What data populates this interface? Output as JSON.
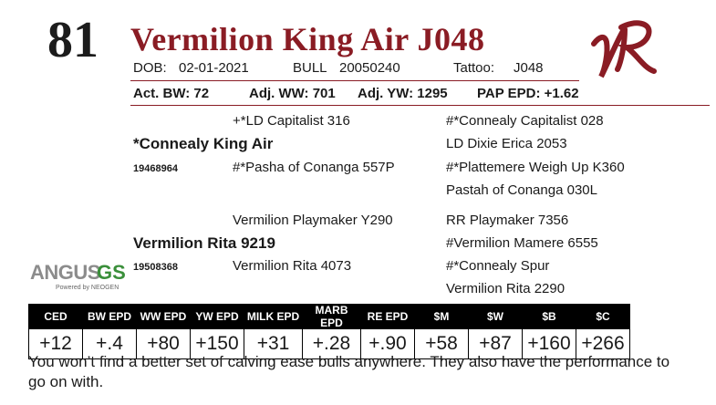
{
  "lot": "81",
  "name": "Vermilion King Air J048",
  "info1": {
    "dob_label": "DOB:",
    "dob": "02-01-2021",
    "sex_label": "BULL",
    "reg": "20050240",
    "tattoo_label": "Tattoo:",
    "tattoo": "J048"
  },
  "info2": {
    "act_bw": "Act. BW: 72",
    "adj_ww": "Adj. WW: 701",
    "adj_yw": "Adj. YW: 1295",
    "pap_epd": "PAP EPD: +1.62"
  },
  "pedigree": {
    "sire": "*Connealy King Air",
    "sire_reg": "19468964",
    "sire_sire": "+*LD Capitalist 316",
    "sire_dam": "#*Pasha of Conanga 557P",
    "ss_sire": "#*Connealy Capitalist 028",
    "ss_dam": "LD Dixie Erica 2053",
    "sd_sire": "#*Plattemere Weigh Up K360",
    "sd_dam": "Pastah of Conanga 030L",
    "dam": "Vermilion Rita 9219",
    "dam_reg": "19508368",
    "dam_sire": "Vermilion Playmaker Y290",
    "dam_dam": "Vermilion Rita 4073",
    "ds_sire": "RR Playmaker 7356",
    "ds_dam": "#Vermilion Mamere 6555",
    "dd_sire": "#*Connealy Spur",
    "dd_dam": "Vermilion Rita 2290"
  },
  "logo": {
    "text": "VR",
    "color": "#8a1c24"
  },
  "angus_logo": {
    "text_angus": "ANGUS",
    "text_gs": "GS",
    "powered": "Powered by NEOGEN"
  },
  "epd": {
    "headers": [
      "CED",
      "BW EPD",
      "WW EPD",
      "YW EPD",
      "MILK EPD",
      "MARB EPD",
      "RE EPD",
      "$M",
      "$W",
      "$B",
      "$C"
    ],
    "values": [
      "+12",
      "+.4",
      "+80",
      "+150",
      "+31",
      "+.28",
      "+.90",
      "+58",
      "+87",
      "+160",
      "+266"
    ]
  },
  "description": "You won’t find a better set of calving ease bulls anywhere.  They also have the performance to go on with."
}
